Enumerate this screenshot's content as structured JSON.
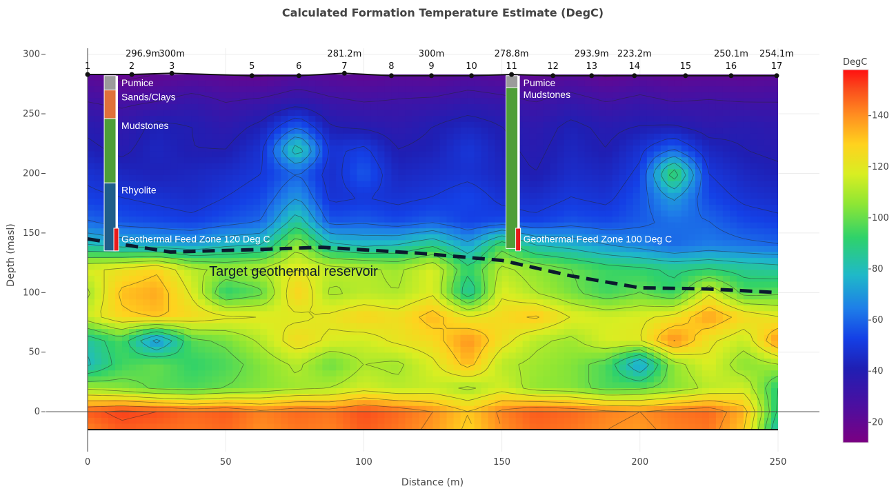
{
  "chart_data": {
    "type": "heatmap",
    "title": "Calculated Formation Temperature Estimate (DegC)",
    "xlabel": "Distance (m)",
    "ylabel": "Depth (masl)",
    "xlim": [
      0,
      265
    ],
    "ylim": [
      -30,
      305
    ],
    "x_ticks": [
      0,
      50,
      100,
      150,
      200,
      250
    ],
    "y_ticks": [
      0,
      50,
      100,
      150,
      200,
      250,
      300
    ],
    "colorbar": {
      "title": "DegC",
      "range": [
        12,
        158
      ],
      "ticks": [
        20,
        40,
        60,
        80,
        100,
        120,
        140
      ],
      "colorscale": [
        [
          0.0,
          "#7b0082"
        ],
        [
          0.1,
          "#4b0fa0"
        ],
        [
          0.2,
          "#1f1fb4"
        ],
        [
          0.28,
          "#1440e6"
        ],
        [
          0.36,
          "#1e7ee8"
        ],
        [
          0.45,
          "#1fb9c8"
        ],
        [
          0.55,
          "#2fd26a"
        ],
        [
          0.64,
          "#8ee634"
        ],
        [
          0.72,
          "#d8ee22"
        ],
        [
          0.8,
          "#ffd21e"
        ],
        [
          0.88,
          "#ff8c20"
        ],
        [
          0.95,
          "#fa4a1c"
        ],
        [
          1.0,
          "#ff1010"
        ]
      ]
    },
    "electrodes": [
      {
        "label": "1",
        "x": 0,
        "y": 283
      },
      {
        "label": "2",
        "x": 16,
        "y": 283
      },
      {
        "label": "3",
        "x": 30.5,
        "y": 284
      },
      {
        "label": "5",
        "x": 59.5,
        "y": 282
      },
      {
        "label": "6",
        "x": 76.5,
        "y": 282
      },
      {
        "label": "7",
        "x": 93,
        "y": 284
      },
      {
        "label": "8",
        "x": 110,
        "y": 282
      },
      {
        "label": "9",
        "x": 124.5,
        "y": 282
      },
      {
        "label": "10",
        "x": 139,
        "y": 282
      },
      {
        "label": "11",
        "x": 153.5,
        "y": 283
      },
      {
        "label": "12",
        "x": 168.5,
        "y": 282
      },
      {
        "label": "13",
        "x": 182.5,
        "y": 282
      },
      {
        "label": "14",
        "x": 198,
        "y": 282
      },
      {
        "label": "15",
        "x": 216.5,
        "y": 282
      },
      {
        "label": "16",
        "x": 233,
        "y": 282
      },
      {
        "label": "17",
        "x": 249.5,
        "y": 282
      }
    ],
    "elevation_labels": [
      {
        "text": "296.9m",
        "x": 20
      },
      {
        "text": "300m",
        "x": 30.5
      },
      {
        "text": "281.2m",
        "x": 93
      },
      {
        "text": "300m",
        "x": 124.5
      },
      {
        "text": "278.8m",
        "x": 153.5
      },
      {
        "text": "293.9m",
        "x": 182.5
      },
      {
        "text": "223.2m",
        "x": 198
      },
      {
        "text": "250.1m",
        "x": 233
      },
      {
        "text": "254.1m",
        "x": 249.5
      }
    ],
    "bottom_elevation": -15,
    "wells": [
      {
        "x": 8,
        "log": [
          {
            "label": "Pumice",
            "top": 282,
            "bottom": 270,
            "color": "#9b9b9b"
          },
          {
            "label": "Sands/Clays",
            "top": 270,
            "bottom": 246,
            "color": "#e0713a"
          },
          {
            "label": "Mudstones",
            "top": 246,
            "bottom": 192,
            "color": "#4e9e38"
          },
          {
            "label": "Rhyolite",
            "top": 192,
            "bottom": 135,
            "color": "#1f5e8a"
          },
          {
            "label": "Geothermal Feed Zone 120 Deg C",
            "top": 154,
            "bottom": 135,
            "color": "#e81a1a"
          }
        ]
      },
      {
        "x": 153.5,
        "log": [
          {
            "label": "Pumice",
            "top": 282,
            "bottom": 272,
            "color": "#9b9b9b"
          },
          {
            "label": "Mudstones",
            "top": 272,
            "bottom": 137,
            "color": "#4e9e38"
          },
          {
            "label": "Geothermal Feed Zone 100 Deg C",
            "top": 154,
            "bottom": 135,
            "color": "#e81a1a"
          }
        ]
      }
    ],
    "reservoir_boundary": {
      "label": "Target geothermal reservoir",
      "points": [
        [
          0,
          145
        ],
        [
          30,
          134
        ],
        [
          60,
          136
        ],
        [
          85,
          138
        ],
        [
          120,
          133
        ],
        [
          150,
          127
        ],
        [
          175,
          114
        ],
        [
          200,
          104
        ],
        [
          225,
          103
        ],
        [
          250,
          100
        ]
      ]
    },
    "temperature_grid": {
      "x": [
        0,
        12,
        25,
        38,
        50,
        63,
        76,
        88,
        100,
        112,
        125,
        138,
        150,
        162,
        175,
        188,
        200,
        212,
        225,
        238,
        250
      ],
      "y": [
        282,
        260,
        240,
        220,
        200,
        180,
        160,
        140,
        120,
        100,
        80,
        60,
        40,
        20,
        0,
        -15
      ],
      "z": [
        [
          22,
          18,
          20,
          22,
          20,
          19,
          24,
          22,
          20,
          22,
          21,
          24,
          22,
          20,
          23,
          19,
          22,
          20,
          21,
          20,
          22
        ],
        [
          30,
          28,
          30,
          34,
          30,
          32,
          36,
          32,
          30,
          31,
          32,
          35,
          33,
          30,
          34,
          30,
          33,
          30,
          31,
          30,
          30
        ],
        [
          38,
          35,
          42,
          40,
          36,
          42,
          58,
          40,
          38,
          36,
          40,
          44,
          40,
          36,
          42,
          38,
          40,
          40,
          36,
          38,
          36
        ],
        [
          42,
          38,
          44,
          40,
          40,
          48,
          88,
          48,
          52,
          40,
          42,
          50,
          42,
          38,
          44,
          40,
          48,
          60,
          44,
          40,
          38
        ],
        [
          48,
          44,
          42,
          44,
          46,
          50,
          60,
          46,
          58,
          44,
          46,
          48,
          44,
          40,
          46,
          44,
          52,
          98,
          50,
          44,
          42
        ],
        [
          52,
          50,
          48,
          46,
          50,
          54,
          70,
          48,
          50,
          48,
          50,
          54,
          48,
          46,
          50,
          48,
          56,
          72,
          54,
          48,
          46
        ],
        [
          60,
          56,
          54,
          52,
          56,
          60,
          86,
          56,
          58,
          54,
          58,
          52,
          54,
          52,
          56,
          54,
          58,
          62,
          60,
          54,
          52
        ],
        [
          80,
          76,
          74,
          72,
          78,
          80,
          108,
          82,
          78,
          80,
          88,
          72,
          96,
          80,
          76,
          70,
          66,
          60,
          64,
          62,
          60
        ],
        [
          118,
          122,
          128,
          112,
          108,
          112,
          120,
          114,
          112,
          108,
          118,
          92,
          112,
          106,
          100,
          94,
          92,
          88,
          90,
          86,
          84
        ],
        [
          108,
          132,
          136,
          118,
          90,
          98,
          130,
          108,
          112,
          110,
          118,
          82,
          118,
          110,
          102,
          94,
          100,
          92,
          118,
          96,
          98
        ],
        [
          116,
          128,
          132,
          126,
          122,
          120,
          118,
          122,
          128,
          124,
          134,
          120,
          126,
          132,
          120,
          116,
          118,
          122,
          138,
          126,
          120
        ],
        [
          84,
          96,
          66,
          98,
          102,
          112,
          126,
          118,
          116,
          122,
          126,
          140,
          124,
          112,
          108,
          118,
          120,
          142,
          122,
          114,
          140
        ],
        [
          78,
          94,
          100,
          92,
          96,
          104,
          112,
          100,
          110,
          108,
          118,
          134,
          112,
          108,
          104,
          96,
          70,
          106,
          118,
          104,
          110
        ],
        [
          108,
          104,
          98,
          96,
          100,
          104,
          108,
          110,
          116,
          112,
          114,
          108,
          116,
          106,
          104,
          96,
          98,
          104,
          112,
          116,
          90
        ],
        [
          148,
          152,
          150,
          146,
          148,
          142,
          146,
          144,
          150,
          146,
          140,
          130,
          142,
          148,
          146,
          142,
          140,
          144,
          146,
          134,
          88
        ],
        [
          142,
          148,
          146,
          144,
          146,
          140,
          144,
          142,
          148,
          144,
          138,
          128,
          140,
          146,
          144,
          140,
          138,
          142,
          144,
          130,
          80
        ]
      ]
    }
  }
}
